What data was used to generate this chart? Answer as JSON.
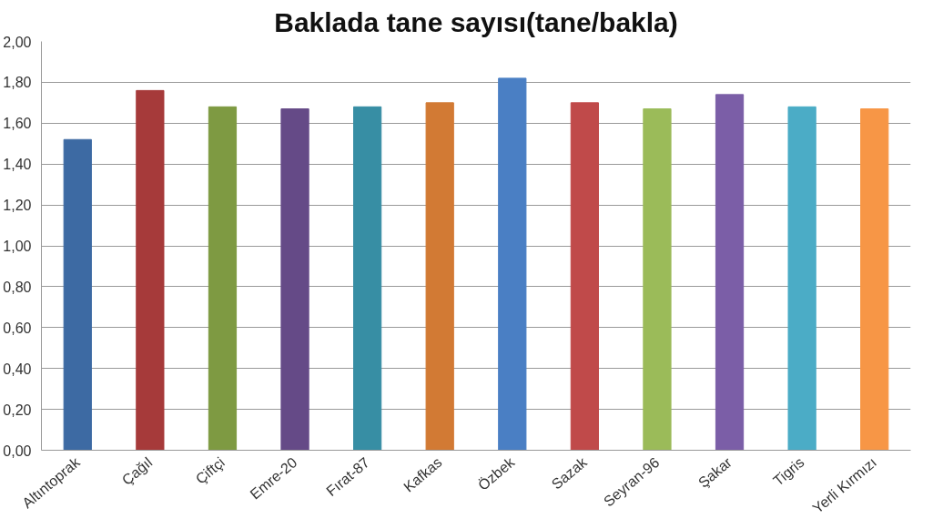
{
  "chart_data": {
    "type": "bar",
    "title": "Baklada tane sayısı(tane/bakla)",
    "categories": [
      "Altıntoprak",
      "Çağıl",
      "Çiftçi",
      "Emre-20",
      "Fırat-87",
      "Kafkas",
      "Özbek",
      "Sazak",
      "Seyran-96",
      "Şakar",
      "Tigris",
      "Yerli Kırmızı"
    ],
    "values": [
      1.52,
      1.76,
      1.68,
      1.67,
      1.68,
      1.7,
      1.82,
      1.7,
      1.67,
      1.74,
      1.68,
      1.67
    ],
    "colors": [
      "#3d6aa3",
      "#a63a3a",
      "#7e9a42",
      "#654a87",
      "#378ea4",
      "#d27a34",
      "#4a7fc4",
      "#c04a4a",
      "#9bbb59",
      "#7b5ea7",
      "#4bacc6",
      "#f79646"
    ],
    "ylim": [
      0,
      2
    ],
    "yticks": [
      {
        "value": 0,
        "label": "0,00"
      },
      {
        "value": 0.2,
        "label": "0,20"
      },
      {
        "value": 0.4,
        "label": "0,40"
      },
      {
        "value": 0.6,
        "label": "0,60"
      },
      {
        "value": 0.8,
        "label": "0,80"
      },
      {
        "value": 1.0,
        "label": "1,00"
      },
      {
        "value": 1.2,
        "label": "1,20"
      },
      {
        "value": 1.4,
        "label": "1,40"
      },
      {
        "value": 1.6,
        "label": "1,60"
      },
      {
        "value": 1.8,
        "label": "1,80"
      },
      {
        "value": 2.0,
        "label": "2,00"
      }
    ],
    "grid": "y"
  }
}
